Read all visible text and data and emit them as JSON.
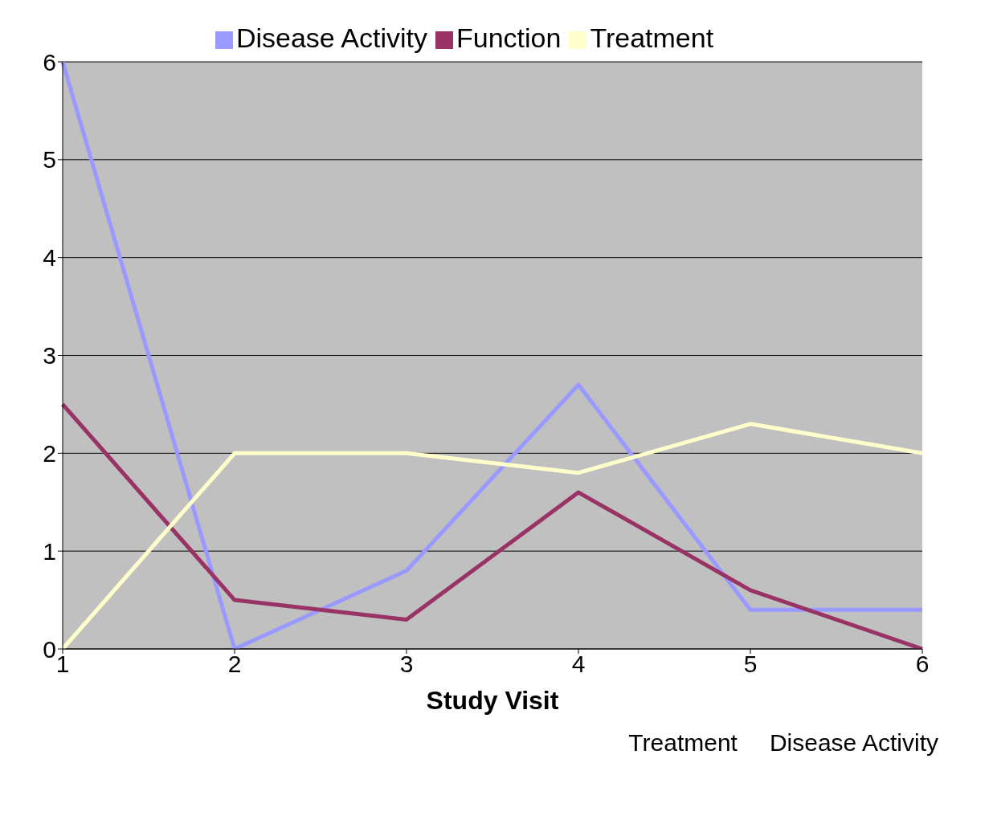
{
  "chart_data": {
    "type": "line",
    "xlabel": "Study Visit",
    "categories": [
      "1",
      "2",
      "3",
      "4",
      "5",
      "6"
    ],
    "series": [
      {
        "name": "Disease Activity",
        "color": "#9999ff",
        "values": [
          6,
          0,
          0.8,
          2.7,
          0.4,
          0.4
        ]
      },
      {
        "name": "Function",
        "color": "#993366",
        "values": [
          2.5,
          0.5,
          0.3,
          1.6,
          0.6,
          0
        ]
      },
      {
        "name": "Treatment",
        "color": "#ffffcc",
        "values": [
          0,
          2,
          2,
          1.8,
          2.3,
          2
        ]
      }
    ],
    "ylim": [
      0,
      6
    ],
    "yticks": [
      0,
      1,
      2,
      3,
      4,
      5,
      6
    ],
    "grid": "y",
    "legend": "top",
    "marker": "none",
    "line_style": "solid",
    "annotations": [
      "Treatment",
      "Disease Activity"
    ]
  }
}
